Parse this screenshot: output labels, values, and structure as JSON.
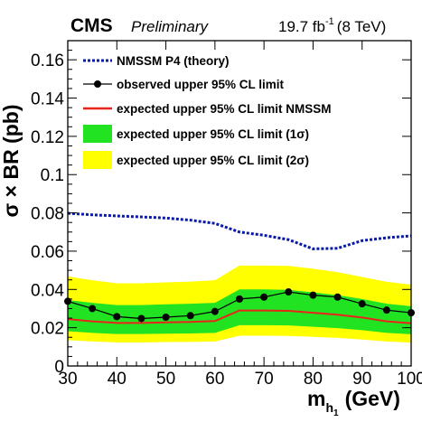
{
  "header": {
    "experiment": "CMS",
    "status": "Preliminary",
    "lumi_value": "19.7 fb",
    "lumi_exponent": "-1",
    "energy": "(8 TeV)"
  },
  "axes": {
    "x_title": "m",
    "x_subscript": "h",
    "x_sub_subscript": "1",
    "x_unit": "(GeV)",
    "y_title": "σ × BR (pb)"
  },
  "legend": [
    {
      "key": "theory",
      "label": "NMSSM P4 (theory)"
    },
    {
      "key": "observed",
      "label": "observed upper 95% CL limit"
    },
    {
      "key": "expected",
      "label": "expected upper 95% CL limit NMSSM"
    },
    {
      "key": "band1",
      "label": "expected upper 95% CL limit (1σ)"
    },
    {
      "key": "band2",
      "label": "expected upper 95% CL limit (2σ)"
    }
  ],
  "colors": {
    "theory": "#0a1aa8",
    "observed": "#000000",
    "expected": "#e8251a",
    "band1": "#22e322",
    "band2": "#ffff00"
  },
  "chart_data": {
    "type": "line",
    "title": "",
    "xlabel": "m_h1 (GeV)",
    "ylabel": "σ × BR (pb)",
    "xlim": [
      30,
      100
    ],
    "ylim": [
      0,
      0.17
    ],
    "x_ticks": [
      30,
      40,
      50,
      60,
      70,
      80,
      90,
      100
    ],
    "x_tick_labels": [
      "30",
      "40",
      "50",
      "60",
      "70",
      "80",
      "90",
      "100"
    ],
    "y_ticks": [
      0,
      0.02,
      0.04,
      0.06,
      0.08,
      0.1,
      0.12,
      0.14,
      0.16
    ],
    "y_tick_labels": [
      "0",
      "0.02",
      "0.04",
      "0.06",
      "0.08",
      "0.1",
      "0.12",
      "0.14",
      "0.16"
    ],
    "grid": false,
    "legend_position": "top-left",
    "series": [
      {
        "name": "NMSSM P4 (theory)",
        "style": "dotted",
        "x": [
          30,
          35,
          40,
          45,
          50,
          55,
          60,
          65,
          70,
          75,
          80,
          85,
          90,
          95,
          100
        ],
        "y": [
          0.0798,
          0.079,
          0.0784,
          0.0779,
          0.0773,
          0.0762,
          0.0745,
          0.07,
          0.0683,
          0.066,
          0.0612,
          0.0615,
          0.0655,
          0.067,
          0.068
        ]
      },
      {
        "name": "observed upper 95% CL limit",
        "style": "line-markers",
        "x": [
          30,
          35,
          40,
          45,
          50,
          55,
          60,
          65,
          70,
          75,
          80,
          85,
          90,
          95,
          100
        ],
        "y": [
          0.0338,
          0.03,
          0.0258,
          0.0248,
          0.0255,
          0.0263,
          0.0285,
          0.035,
          0.036,
          0.0387,
          0.037,
          0.036,
          0.0325,
          0.0292,
          0.0278
        ]
      },
      {
        "name": "expected upper 95% CL limit NMSSM",
        "style": "solid",
        "x": [
          30,
          35,
          40,
          45,
          50,
          55,
          60,
          65,
          70,
          75,
          80,
          85,
          90,
          95,
          100
        ],
        "y": [
          0.0245,
          0.0233,
          0.0225,
          0.0225,
          0.0228,
          0.023,
          0.0235,
          0.029,
          0.029,
          0.0288,
          0.0278,
          0.0268,
          0.0253,
          0.0233,
          0.0223
        ]
      },
      {
        "name": "expected upper 95% CL limit (1σ)",
        "style": "band",
        "x": [
          30,
          35,
          40,
          45,
          50,
          55,
          60,
          65,
          70,
          75,
          80,
          85,
          90,
          95,
          100
        ],
        "low": [
          0.0182,
          0.0173,
          0.0167,
          0.0167,
          0.0169,
          0.017,
          0.0173,
          0.0213,
          0.0213,
          0.0212,
          0.0205,
          0.0198,
          0.0187,
          0.0173,
          0.0166
        ],
        "high": [
          0.0345,
          0.033,
          0.0318,
          0.0318,
          0.0322,
          0.0325,
          0.033,
          0.04,
          0.04,
          0.0398,
          0.0385,
          0.037,
          0.035,
          0.0325,
          0.0312
        ]
      },
      {
        "name": "expected upper 95% CL limit (2σ)",
        "style": "band",
        "x": [
          30,
          35,
          40,
          45,
          50,
          55,
          60,
          65,
          70,
          75,
          80,
          85,
          90,
          95,
          100
        ],
        "low": [
          0.0135,
          0.0128,
          0.0123,
          0.0123,
          0.0125,
          0.0126,
          0.0128,
          0.0158,
          0.0158,
          0.0157,
          0.0152,
          0.0147,
          0.0138,
          0.0128,
          0.0122
        ],
        "high": [
          0.0468,
          0.0448,
          0.0432,
          0.0432,
          0.0437,
          0.0441,
          0.0448,
          0.0525,
          0.0525,
          0.0523,
          0.0508,
          0.049,
          0.0465,
          0.044,
          0.0425
        ]
      }
    ]
  }
}
